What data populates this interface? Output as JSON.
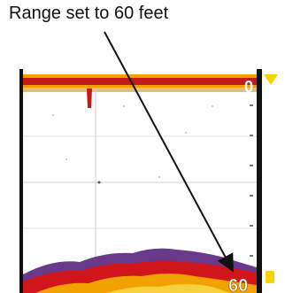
{
  "annotation": {
    "text": "Range set to 60 feet"
  },
  "sonar": {
    "top_range_label": "0",
    "bottom_range_label": "60",
    "colors": {
      "surface_band": "#f6a000",
      "surface_core": "#c01b1b",
      "bottom_red": "#d0151b",
      "bottom_orange": "#f2a200",
      "bottom_purple": "#6a3a8a",
      "background": "#ffffff",
      "frame": "#111111",
      "scale_marker": "#f5d400"
    }
  }
}
